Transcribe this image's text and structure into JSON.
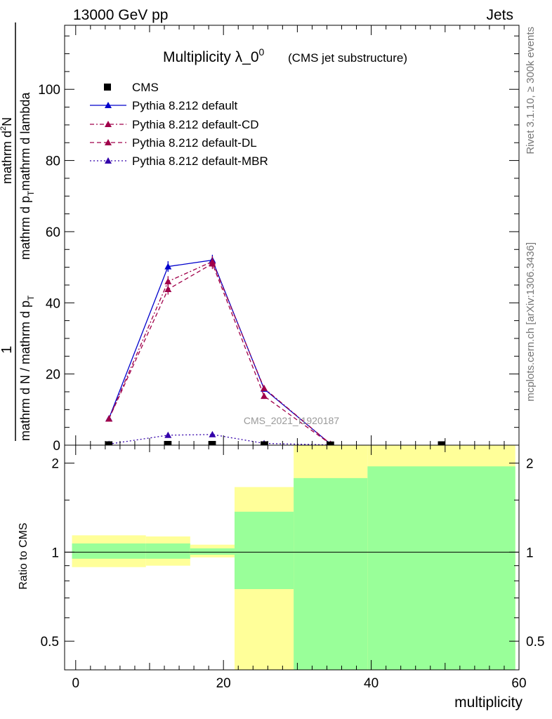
{
  "header": {
    "energy": "13000 GeV pp",
    "category": "Jets",
    "side_label_top": "Rivet 3.1.10, ≥ 300k events",
    "side_label_bottom": "mcplots.cern.ch [arXiv:1306.3436]"
  },
  "colors": {
    "cms": "#000000",
    "default": "#0000cc",
    "cd": "#a0004a",
    "dl": "#a0004a",
    "mbr": "#3300aa",
    "band_inner": "#99ff99",
    "band_outer": "#ffff99"
  },
  "chart_data": [
    {
      "type": "line",
      "title": "Multiplicity λ_0",
      "title_sup": "0",
      "subtitle": "(CMS jet substructure)",
      "watermark": "CMS_2021_I1920187",
      "ylabel_num": "1",
      "ylabel_den": "mathrm d N / mathrm d p",
      "ylabel_top": "mathrm d",
      "ylabel_topsup": "2",
      "ylabel_topN": "N",
      "ylabel_mid": "mathrm d p",
      "ylabel_mid_sub": "T",
      "ylabel_end": "mathrm d lambda",
      "xlim": [
        -1.5,
        60
      ],
      "ylim": [
        0,
        118
      ],
      "yticks": [
        0,
        20,
        40,
        60,
        80,
        100
      ],
      "ytick_labels": [
        "0",
        "20",
        "40",
        "60",
        "80",
        "100"
      ],
      "legend": [
        "CMS",
        "Pythia 8.212 default",
        "Pythia 8.212 default-CD",
        "Pythia 8.212 default-DL",
        "Pythia 8.212 default-MBR"
      ],
      "series": [
        {
          "name": "CMS",
          "style": "square",
          "x": [
            4.5,
            12.5,
            18.5,
            25.5,
            34.5,
            49.5
          ],
          "values": [
            0.1,
            0.2,
            0.2,
            0.1,
            0.05,
            0.1
          ]
        },
        {
          "name": "Pythia 8.212 default",
          "style": "solid",
          "x": [
            4.5,
            12.5,
            18.5,
            25.5,
            34.5
          ],
          "values": [
            7.5,
            50.2,
            52.0,
            15.8,
            0.3
          ],
          "errors": [
            0.5,
            1.5,
            1.5,
            0.8,
            0.1
          ]
        },
        {
          "name": "Pythia 8.212 default-CD",
          "style": "dashed",
          "x": [
            4.5,
            12.5,
            18.5,
            25.5,
            34.5
          ],
          "values": [
            7.4,
            46.0,
            51.6,
            16.0,
            0.3
          ],
          "errors": [
            0.5,
            1.5,
            1.5,
            0.8,
            0.1
          ]
        },
        {
          "name": "Pythia 8.212 default-DL",
          "style": "dashed",
          "x": [
            4.5,
            12.5,
            18.5,
            25.5,
            34.5
          ],
          "values": [
            7.4,
            43.8,
            51.0,
            13.8,
            0.3
          ],
          "errors": [
            0.5,
            1.5,
            1.5,
            0.8,
            0.1
          ]
        },
        {
          "name": "Pythia 8.212 default-MBR",
          "style": "dotted",
          "x": [
            4.5,
            12.5,
            18.5,
            25.5,
            34.5
          ],
          "values": [
            0.3,
            2.8,
            3.0,
            0.5,
            0.05
          ],
          "errors": [
            0.1,
            0.2,
            0.2,
            0.1,
            0.02
          ]
        }
      ]
    },
    {
      "type": "area",
      "title": "Ratio to CMS",
      "ylabel": "Ratio to CMS",
      "xlabel": "multiplicity",
      "xlim": [
        -1.5,
        60
      ],
      "ylim": [
        0.4,
        2.3
      ],
      "yscale": "log",
      "yticks": [
        0.5,
        1,
        2
      ],
      "ytick_labels": [
        "0.5",
        "1",
        "2"
      ],
      "xticks": [
        0,
        20,
        40,
        60
      ],
      "xtick_labels": [
        "0",
        "20",
        "40",
        "60"
      ],
      "bins": [
        {
          "lo": -0.5,
          "hi": 9.5,
          "inner": [
            0.95,
            1.07
          ],
          "outer": [
            0.89,
            1.14
          ]
        },
        {
          "lo": 9.5,
          "hi": 15.5,
          "inner": [
            0.95,
            1.07
          ],
          "outer": [
            0.9,
            1.13
          ]
        },
        {
          "lo": 15.5,
          "hi": 21.5,
          "inner": [
            0.98,
            1.03
          ],
          "outer": [
            0.96,
            1.06
          ]
        },
        {
          "lo": 21.5,
          "hi": 29.5,
          "inner": [
            0.75,
            1.37
          ],
          "outer": [
            0.36,
            1.66
          ]
        },
        {
          "lo": 29.5,
          "hi": 39.5,
          "inner": [
            0.36,
            1.78
          ],
          "outer": [
            0.36,
            2.4
          ]
        },
        {
          "lo": 39.5,
          "hi": 59.5,
          "inner": [
            0.36,
            1.95
          ],
          "outer": [
            0.36,
            2.4
          ]
        }
      ]
    }
  ]
}
